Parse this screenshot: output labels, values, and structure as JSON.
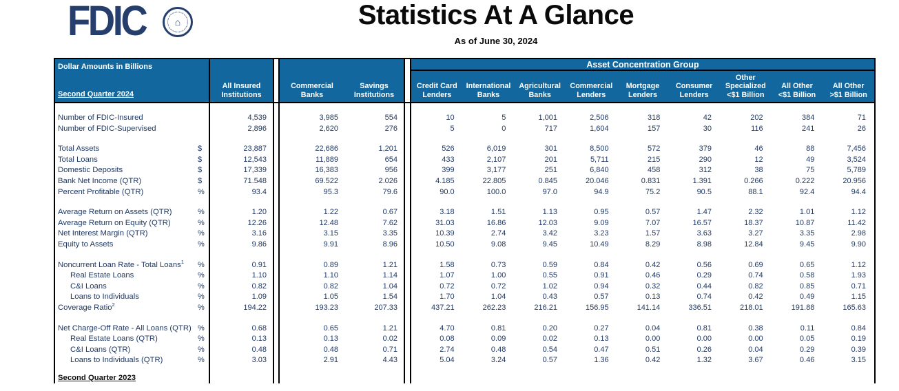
{
  "page": {
    "title": "Statistics At A Glance",
    "subtitle": "As of June 30, 2024"
  },
  "logo": {
    "text": "FDIC"
  },
  "colors": {
    "header_blue": "#12689E",
    "text_navy": "#1F3864",
    "logo_navy": "#263E6B",
    "border_black": "#000000"
  },
  "table": {
    "corner": {
      "line1": "Dollar Amounts in Billions",
      "line2": "Second Quarter 2024"
    },
    "group_header": "Asset Concentration Group",
    "left_columns": [
      "All Insured\nInstitutions",
      "Commercial\nBanks",
      "Savings\nInstitutions"
    ],
    "acg_columns": [
      "Credit Card\nLenders",
      "International\nBanks",
      "Agricultural\nBanks",
      "Commercial\nLenders",
      "Mortgage\nLenders",
      "Consumer\nLenders",
      "Other\nSpecialized\n<$1 Billion",
      "All Other\n<$1 Billion",
      "All Other\n>$1 Billion"
    ],
    "rows": [
      {
        "blank": true
      },
      {
        "label": "Number of FDIC-Insured",
        "unit": "",
        "values": [
          "4,539",
          "3,985",
          "554",
          "10",
          "5",
          "1,001",
          "2,506",
          "318",
          "42",
          "202",
          "384",
          "71"
        ]
      },
      {
        "label": "Number of FDIC-Supervised",
        "unit": "",
        "values": [
          "2,896",
          "2,620",
          "276",
          "5",
          "0",
          "717",
          "1,604",
          "157",
          "30",
          "116",
          "241",
          "26"
        ]
      },
      {
        "blank": true
      },
      {
        "label": "Total Assets",
        "unit": "$",
        "values": [
          "23,887",
          "22,686",
          "1,201",
          "526",
          "6,019",
          "301",
          "8,500",
          "572",
          "379",
          "46",
          "88",
          "7,456"
        ]
      },
      {
        "label": "Total Loans",
        "unit": "$",
        "values": [
          "12,543",
          "11,889",
          "654",
          "433",
          "2,107",
          "201",
          "5,711",
          "215",
          "290",
          "12",
          "49",
          "3,524"
        ]
      },
      {
        "label": "Domestic Deposits",
        "unit": "$",
        "values": [
          "17,339",
          "16,383",
          "956",
          "399",
          "3,177",
          "251",
          "6,840",
          "458",
          "312",
          "38",
          "75",
          "5,789"
        ]
      },
      {
        "label": "Bank Net Income (QTR)",
        "unit": "$",
        "values": [
          "71.548",
          "69.522",
          "2.026",
          "4.185",
          "22.805",
          "0.845",
          "20.046",
          "0.831",
          "1.391",
          "0.266",
          "0.222",
          "20.956"
        ]
      },
      {
        "label": "Percent Profitable (QTR)",
        "unit": "%",
        "values": [
          "93.4",
          "95.3",
          "79.6",
          "90.0",
          "100.0",
          "97.0",
          "94.9",
          "75.2",
          "90.5",
          "88.1",
          "92.4",
          "94.4"
        ]
      },
      {
        "blank": true
      },
      {
        "label": "Average Return on Assets (QTR)",
        "unit": "%",
        "values": [
          "1.20",
          "1.22",
          "0.67",
          "3.18",
          "1.51",
          "1.13",
          "0.95",
          "0.57",
          "1.47",
          "2.32",
          "1.01",
          "1.12"
        ]
      },
      {
        "label": "Average Return on Equity (QTR)",
        "unit": "%",
        "values": [
          "12.26",
          "12.48",
          "7.62",
          "31.03",
          "16.86",
          "12.03",
          "9.09",
          "7.07",
          "16.57",
          "18.37",
          "10.87",
          "11.42"
        ]
      },
      {
        "label": "Net Interest Margin (QTR)",
        "unit": "%",
        "values": [
          "3.16",
          "3.15",
          "3.35",
          "10.39",
          "2.74",
          "3.42",
          "3.23",
          "1.57",
          "3.63",
          "3.27",
          "3.35",
          "2.98"
        ]
      },
      {
        "label": "Equity to Assets",
        "unit": "%",
        "values": [
          "9.86",
          "9.91",
          "8.96",
          "10.50",
          "9.08",
          "9.45",
          "10.49",
          "8.29",
          "8.98",
          "12.84",
          "9.45",
          "9.90"
        ]
      },
      {
        "blank": true
      },
      {
        "label": "Noncurrent Loan Rate - Total Loans",
        "sup": "1",
        "unit": "%",
        "values": [
          "0.91",
          "0.89",
          "1.21",
          "1.58",
          "0.73",
          "0.59",
          "0.84",
          "0.42",
          "0.56",
          "0.69",
          "0.65",
          "1.12"
        ]
      },
      {
        "label": "Real Estate Loans",
        "indent": true,
        "unit": "%",
        "values": [
          "1.10",
          "1.10",
          "1.14",
          "1.07",
          "1.00",
          "0.55",
          "0.91",
          "0.46",
          "0.29",
          "0.74",
          "0.58",
          "1.93"
        ]
      },
      {
        "label": "C&I Loans",
        "indent": true,
        "unit": "%",
        "values": [
          "0.82",
          "0.82",
          "1.04",
          "0.72",
          "0.72",
          "1.02",
          "0.94",
          "0.32",
          "0.44",
          "0.82",
          "0.85",
          "0.71"
        ]
      },
      {
        "label": "Loans to Individuals",
        "indent": true,
        "unit": "%",
        "values": [
          "1.09",
          "1.05",
          "1.54",
          "1.70",
          "1.04",
          "0.43",
          "0.57",
          "0.13",
          "0.74",
          "0.42",
          "0.49",
          "1.15"
        ]
      },
      {
        "label": "Coverage Ratio",
        "sup": "2",
        "unit": "%",
        "values": [
          "194.22",
          "193.23",
          "207.33",
          "437.21",
          "262.23",
          "216.21",
          "156.95",
          "141.14",
          "336.51",
          "218.01",
          "191.88",
          "165.63"
        ]
      },
      {
        "blank": true
      },
      {
        "label": "Net Charge-Off Rate - All Loans (QTR)",
        "unit": "%",
        "values": [
          "0.68",
          "0.65",
          "1.21",
          "4.70",
          "0.81",
          "0.20",
          "0.27",
          "0.04",
          "0.81",
          "0.38",
          "0.11",
          "0.84"
        ]
      },
      {
        "label": "Real Estate Loans (QTR)",
        "indent": true,
        "unit": "%",
        "values": [
          "0.13",
          "0.13",
          "0.02",
          "0.08",
          "0.09",
          "0.02",
          "0.13",
          "0.00",
          "0.00",
          "0.00",
          "0.05",
          "0.19"
        ]
      },
      {
        "label": "C&I Loans (QTR)",
        "indent": true,
        "unit": "%",
        "values": [
          "0.48",
          "0.48",
          "0.71",
          "2.74",
          "0.48",
          "0.54",
          "0.47",
          "0.51",
          "0.26",
          "0.04",
          "0.29",
          "0.39"
        ]
      },
      {
        "label": "Loans to Individuals (QTR)",
        "indent": true,
        "unit": "%",
        "values": [
          "3.03",
          "2.91",
          "4.43",
          "5.04",
          "3.24",
          "0.57",
          "1.36",
          "0.42",
          "1.32",
          "3.67",
          "0.46",
          "3.15"
        ]
      },
      {
        "blank": true,
        "small": true
      },
      {
        "label": "Second Quarter 2023",
        "section": true
      }
    ]
  }
}
